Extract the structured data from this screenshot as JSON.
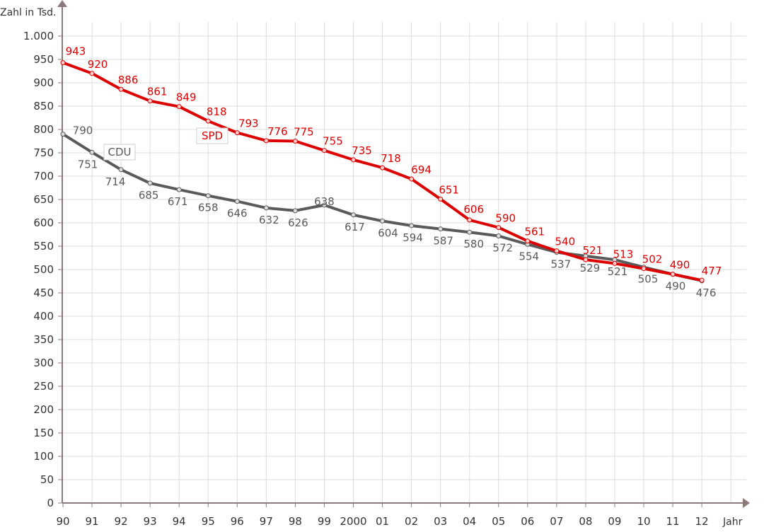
{
  "chart_data": {
    "type": "line",
    "ylabel": "Zahl in Tsd.",
    "xlabel": "Jahr",
    "ylim": [
      0,
      1000
    ],
    "yticks": [
      0,
      50,
      100,
      150,
      200,
      250,
      300,
      350,
      400,
      450,
      500,
      550,
      600,
      650,
      700,
      750,
      800,
      850,
      900,
      950,
      1000
    ],
    "ytick_labels": [
      "0",
      "50",
      "100",
      "150",
      "200",
      "250",
      "300",
      "350",
      "400",
      "450",
      "500",
      "550",
      "600",
      "650",
      "700",
      "750",
      "800",
      "850",
      "900",
      "950",
      "1.000"
    ],
    "x_tick_labels": [
      "90",
      "91",
      "92",
      "93",
      "94",
      "95",
      "96",
      "97",
      "98",
      "99",
      "2000",
      "01",
      "02",
      "03",
      "04",
      "05",
      "06",
      "07",
      "08",
      "09",
      "10",
      "11",
      "12"
    ],
    "x": [
      1990,
      1991,
      1992,
      1993,
      1994,
      1995,
      1996,
      1997,
      1998,
      1999,
      2000,
      2001,
      2002,
      2003,
      2004,
      2005,
      2006,
      2007,
      2008,
      2009,
      2010,
      2011,
      2012
    ],
    "grid": true,
    "series": [
      {
        "name": "SPD",
        "color": "#dd0000",
        "values": [
          943,
          920,
          886,
          861,
          849,
          818,
          793,
          776,
          775,
          755,
          735,
          718,
          694,
          651,
          606,
          590,
          561,
          540,
          521,
          513,
          502,
          490,
          477
        ]
      },
      {
        "name": "CDU",
        "color": "#5a5a5a",
        "values": [
          790,
          751,
          714,
          685,
          671,
          658,
          646,
          632,
          626,
          638,
          617,
          604,
          594,
          587,
          580,
          572,
          554,
          537,
          529,
          521,
          505,
          490,
          476
        ]
      }
    ]
  }
}
